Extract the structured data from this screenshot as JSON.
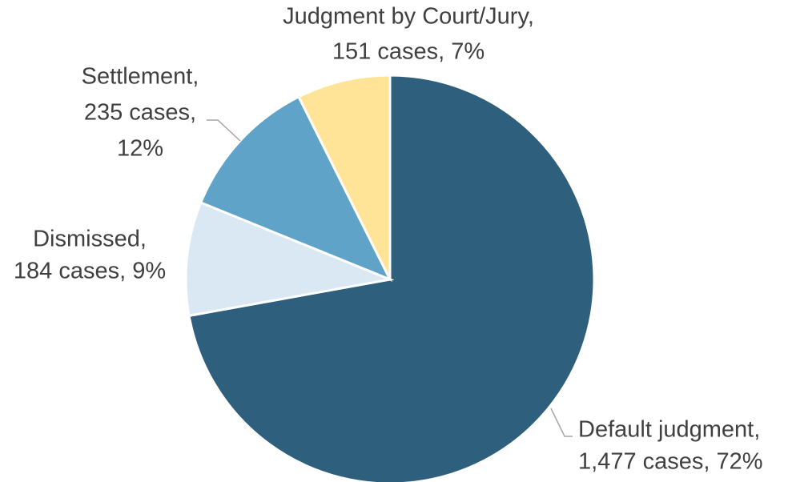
{
  "chart_data": {
    "type": "pie",
    "categories": [
      "Default judgment",
      "Dismissed",
      "Settlement",
      "Judgment by Court/Jury"
    ],
    "values": [
      1477,
      184,
      235,
      151
    ],
    "value_labels": [
      [
        "Default judgment,",
        "1,477 cases, 72%"
      ],
      [
        "Dismissed,",
        "184 cases, 9%"
      ],
      [
        "Settlement,",
        "235 cases,",
        "12%"
      ],
      [
        "Judgment by Court/Jury,",
        "151 cases, 7%"
      ]
    ],
    "colors": [
      "#2e5f7d",
      "#d9e8f3",
      "#5fa3c8",
      "#ffe397"
    ]
  }
}
